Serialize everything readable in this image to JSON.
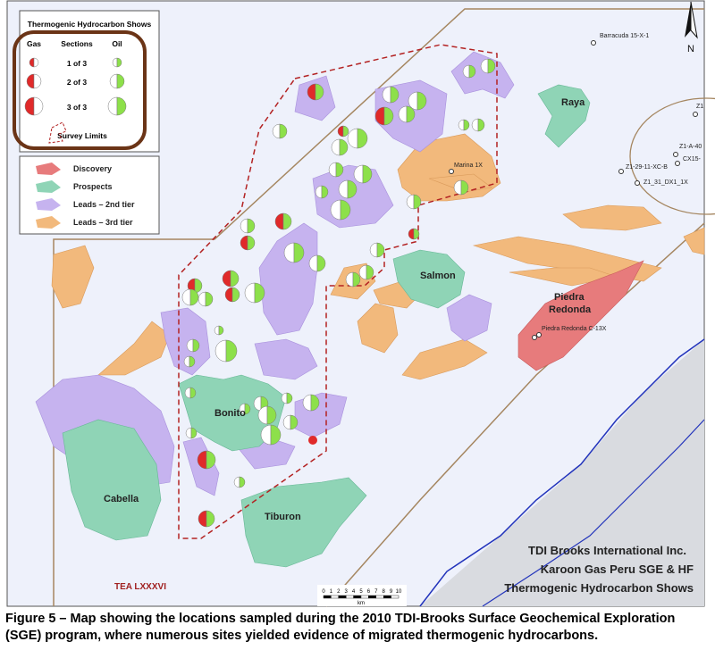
{
  "legend_shows": {
    "title": "Thermogenic Hydrocarbon Shows",
    "headers": [
      "Gas",
      "Sections",
      "Oil"
    ],
    "rows": [
      "1 of 3",
      "2 of 3",
      "3 of 3"
    ],
    "survey_limits": "Survey Limits"
  },
  "legend_areas": {
    "items": [
      "Discovery",
      "Prospects",
      "Leads – 2nd tier",
      "Leads – 3rd tier"
    ]
  },
  "wells": [
    "Barracuda 15-X-1",
    "Z1",
    "Z1-A-40",
    "CX15-",
    "Z1-29-11-XC-B",
    "Z1_31_DX1_1X",
    "Marina 1X",
    "Piedra Redonda C-13X"
  ],
  "areas": {
    "raya": "Raya",
    "salmon": "Salmon",
    "piedra": "Piedra Redonda",
    "bonito": "Bonito",
    "cabella": "Cabella",
    "tiburon": "Tiburon"
  },
  "block": "TEA LXXXVI",
  "north": "N",
  "scale": {
    "ticks": [
      0,
      1,
      2,
      3,
      4,
      5,
      6,
      7,
      8,
      9,
      10
    ],
    "unit": "km"
  },
  "credit": [
    "TDI Brooks International Inc.",
    "Karoon Gas Peru SGE & HF",
    "Thermogenic Hydrocarbon Shows"
  ],
  "caption": "Figure 5 – Map showing the locations sampled during the 2010 TDI-Brooks Surface Geochemical Exploration (SGE) program, where numerous sites yielded evidence of migrated thermogenic hydrocarbons."
}
